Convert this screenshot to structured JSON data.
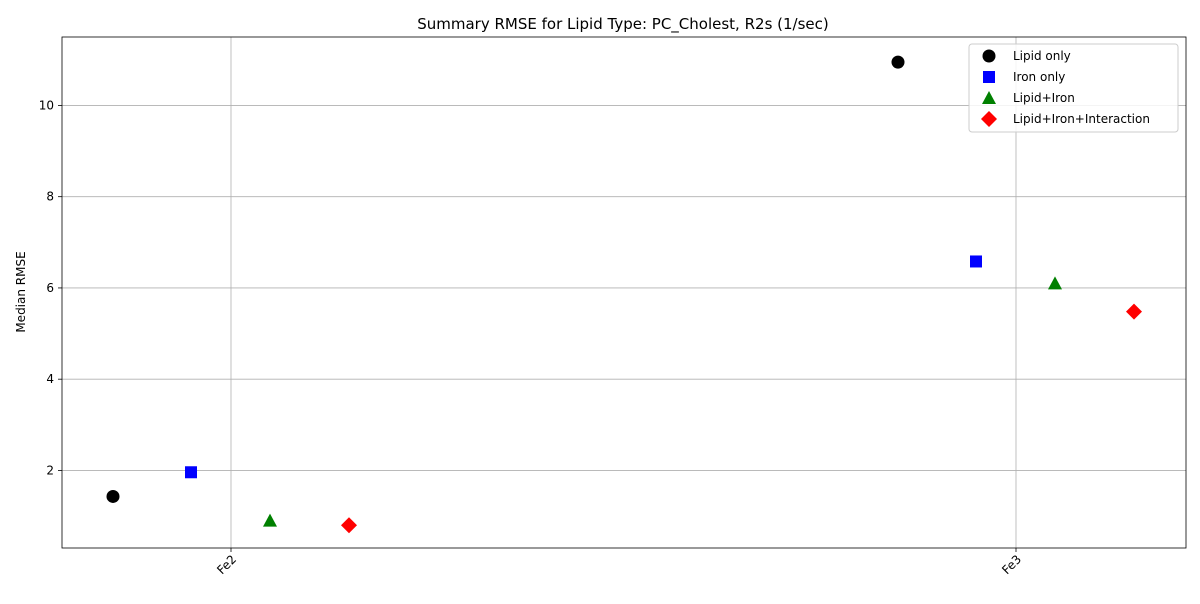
{
  "chart_data": {
    "type": "scatter",
    "title": "Summary RMSE for Lipid Type: PC_Cholest, R2s (1/sec)",
    "xlabel": "",
    "ylabel": "Median RMSE",
    "categories": [
      "Fe2",
      "Fe3"
    ],
    "ylim": [
      0.3,
      11.5
    ],
    "yticks": [
      2,
      4,
      6,
      8,
      10
    ],
    "grid": true,
    "legend_position": "top-right",
    "series": [
      {
        "name": "Lipid only",
        "marker": "circle",
        "color": "#000000",
        "values": [
          1.43,
          10.95
        ]
      },
      {
        "name": "Iron only",
        "marker": "square",
        "color": "#0000ff",
        "values": [
          1.96,
          6.58
        ]
      },
      {
        "name": "Lipid+Iron",
        "marker": "triangle",
        "color": "#008000",
        "values": [
          0.9,
          6.1
        ]
      },
      {
        "name": "Lipid+Iron+Interaction",
        "marker": "diamond",
        "color": "#ff0000",
        "values": [
          0.8,
          5.48
        ]
      }
    ]
  }
}
